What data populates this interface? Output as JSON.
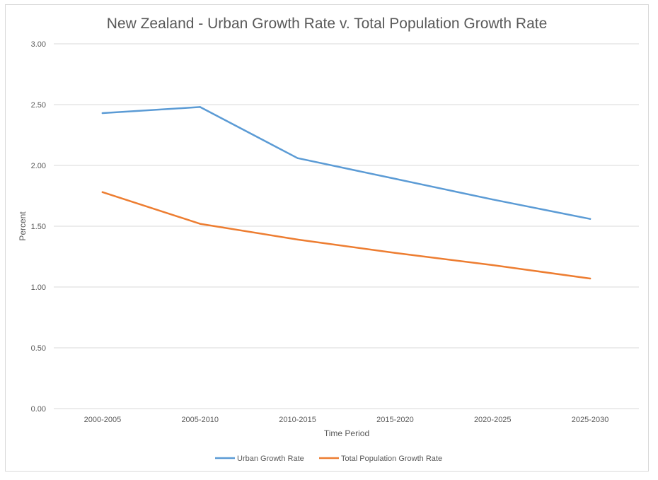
{
  "chart_data": {
    "type": "line",
    "title": "New Zealand - Urban Growth Rate v. Total Population Growth Rate",
    "xlabel": "Time Period",
    "ylabel": "Percent",
    "categories": [
      "2000-2005",
      "2005-2010",
      "2010-2015",
      "2015-2020",
      "2020-2025",
      "2025-2030"
    ],
    "ylim": [
      0,
      3
    ],
    "yticks": [
      "0.00",
      "0.50",
      "1.00",
      "1.50",
      "2.00",
      "2.50",
      "3.00"
    ],
    "grid": true,
    "legend_position": "bottom",
    "series": [
      {
        "name": "Urban Growth Rate",
        "color": "#5b9bd5",
        "values": [
          2.43,
          2.48,
          2.06,
          1.89,
          1.72,
          1.56
        ]
      },
      {
        "name": "Total Population Growth Rate",
        "color": "#ed7d31",
        "values": [
          1.78,
          1.52,
          1.39,
          1.28,
          1.18,
          1.07
        ]
      }
    ]
  }
}
